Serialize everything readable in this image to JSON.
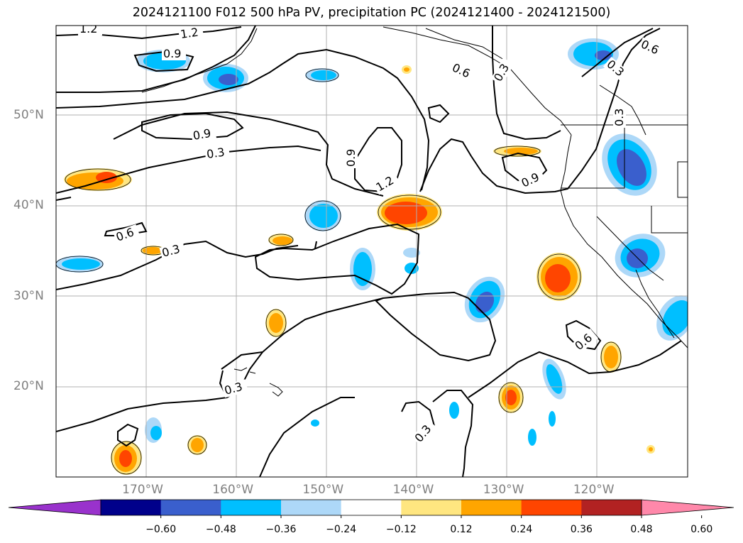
{
  "title": "2024121100 F012 500 hPa PV, precipitation PC (2024121400 - 2024121500)",
  "lat_labels": [
    {
      "text": "50°N",
      "lat": 50
    },
    {
      "text": "40°N",
      "lat": 40
    },
    {
      "text": "30°N",
      "lat": 30
    },
    {
      "text": "20°N",
      "lat": 20
    }
  ],
  "lon_labels": [
    {
      "text": "170°W",
      "lon": -170
    },
    {
      "text": "160°W",
      "lon": -160
    },
    {
      "text": "150°W",
      "lon": -150
    },
    {
      "text": "140°W",
      "lon": -140
    },
    {
      "text": "130°W",
      "lon": -130
    },
    {
      "text": "120°W",
      "lon": -120
    }
  ],
  "colorbar": {
    "ticks": [
      "−0.60",
      "−0.48",
      "−0.36",
      "−0.24",
      "−0.12",
      "0.12",
      "0.24",
      "0.36",
      "0.48",
      "0.60"
    ],
    "colors": [
      "#9932cc",
      "#00008b",
      "#3a5fcd",
      "#00bfff",
      "#add8f8",
      "#ffffff",
      "#ffe680",
      "#ffa500",
      "#ff4500",
      "#b22222",
      "#ff88aa"
    ]
  },
  "contour_labels": {
    "c12a": "1.2",
    "c12b": "1.2",
    "c09a": "0.9",
    "c06a": "0.6",
    "c03a": "0.3",
    "c06b": "0.6",
    "c03b": "0.3",
    "c09b": "0.9",
    "c03c": "0.3",
    "c09c": "0.9",
    "c12c": "1.2",
    "c09d": "0.9",
    "c06c": "0.6",
    "c03d": "0.3",
    "c03e": "0.3",
    "c06d": "0.6",
    "c03f": "0.3",
    "c03g": "0.3"
  }
}
